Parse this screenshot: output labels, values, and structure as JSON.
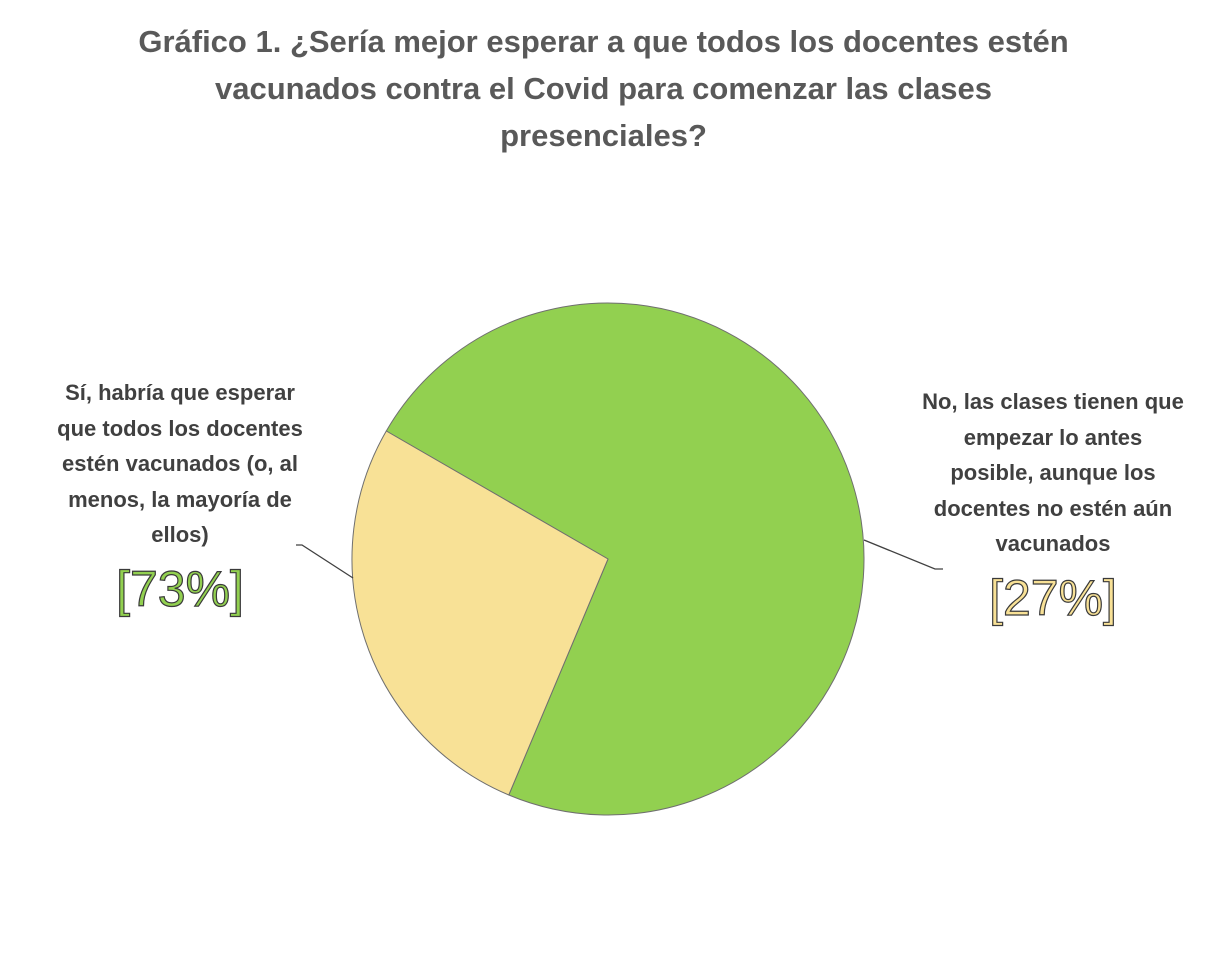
{
  "chart_data": {
    "type": "pie",
    "title": "Gráfico 1. ¿Sería mejor esperar a que todos los docentes estén vacunados contra el Covid para comenzar las clases presenciales?",
    "slices": [
      {
        "label": "Sí, habría que esperar que todos los docentes estén vacunados (o, al menos, la mayoría de ellos)",
        "value": 73,
        "display": "[73%]",
        "color": "#92D050",
        "label_color": "#92D050"
      },
      {
        "label": "No, las clases tienen que empezar lo antes posible, aunque los docentes no estén aún vacunados",
        "value": 27,
        "display": "[27%]",
        "color": "#F8E196",
        "label_color": "#F8E196"
      }
    ],
    "legend": "none",
    "data_labels": "outside with leader lines"
  },
  "colors": {
    "title": "#595959",
    "label_text": "#404040",
    "slice_border": "#6f6f6f",
    "leader_line": "#404040"
  }
}
